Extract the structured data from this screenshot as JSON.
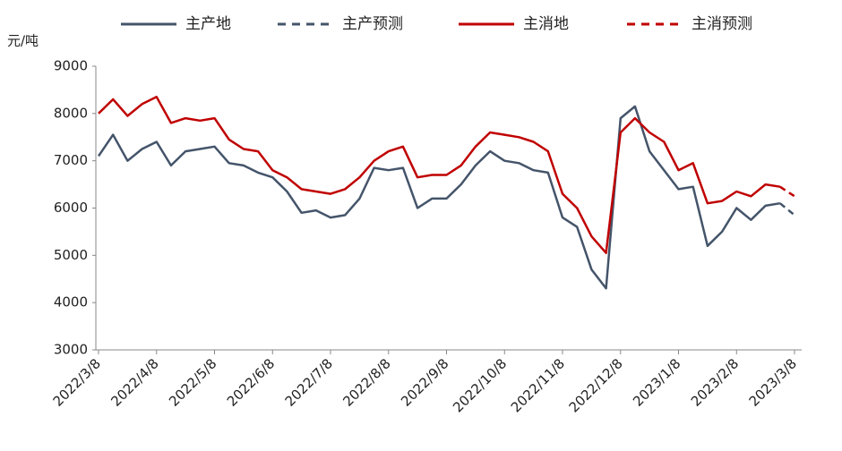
{
  "chart_data": {
    "type": "line",
    "y_label": "元/吨",
    "categories": [
      "2022/3/8",
      null,
      null,
      null,
      "2022/4/8",
      null,
      null,
      null,
      "2022/5/8",
      null,
      null,
      null,
      "2022/6/8",
      null,
      null,
      null,
      "2022/7/8",
      null,
      null,
      null,
      "2022/8/8",
      null,
      null,
      null,
      "2022/9/8",
      null,
      null,
      null,
      "2022/10/8",
      null,
      null,
      null,
      "2022/11/8",
      null,
      null,
      null,
      "2022/12/8",
      null,
      null,
      null,
      "2023/1/8",
      null,
      null,
      null,
      "2023/2/8",
      null,
      null,
      null,
      "2023/3/8"
    ],
    "series": [
      {
        "name": "主产地",
        "color": "#44546a",
        "dashed": false,
        "values": [
          7100,
          7550,
          7000,
          7250,
          7400,
          6900,
          7200,
          7250,
          7300,
          6950,
          6900,
          6750,
          6650,
          6350,
          5900,
          5950,
          5800,
          5850,
          6200,
          6850,
          6800,
          6850,
          6000,
          6200,
          6200,
          6500,
          6900,
          7200,
          7000,
          6950,
          6800,
          6750,
          5800,
          5600,
          4700,
          4300,
          7900,
          8150,
          7200,
          6800,
          6400,
          6450,
          5200,
          5500,
          6000,
          5750,
          6050,
          6100,
          null
        ]
      },
      {
        "name": "主产预测",
        "color": "#44546a",
        "dashed": true,
        "values": [
          null,
          null,
          null,
          null,
          null,
          null,
          null,
          null,
          null,
          null,
          null,
          null,
          null,
          null,
          null,
          null,
          null,
          null,
          null,
          null,
          null,
          null,
          null,
          null,
          null,
          null,
          null,
          null,
          null,
          null,
          null,
          null,
          null,
          null,
          null,
          null,
          null,
          null,
          null,
          null,
          null,
          null,
          null,
          null,
          null,
          null,
          null,
          6100,
          5850
        ]
      },
      {
        "name": "主消地",
        "color": "#c00000",
        "dashed": false,
        "values": [
          8000,
          8300,
          7950,
          8200,
          8350,
          7800,
          7900,
          7850,
          7900,
          7450,
          7250,
          7200,
          6800,
          6650,
          6400,
          6350,
          6300,
          6400,
          6650,
          7000,
          7200,
          7300,
          6650,
          6700,
          6700,
          6900,
          7300,
          7600,
          7550,
          7500,
          7400,
          7200,
          6300,
          6000,
          5400,
          5050,
          7600,
          7900,
          7600,
          7400,
          6800,
          6950,
          6100,
          6150,
          6350,
          6250,
          6500,
          6450,
          null
        ]
      },
      {
        "name": "主消预测",
        "color": "#c00000",
        "dashed": true,
        "values": [
          null,
          null,
          null,
          null,
          null,
          null,
          null,
          null,
          null,
          null,
          null,
          null,
          null,
          null,
          null,
          null,
          null,
          null,
          null,
          null,
          null,
          null,
          null,
          null,
          null,
          null,
          null,
          null,
          null,
          null,
          null,
          null,
          null,
          null,
          null,
          null,
          null,
          null,
          null,
          null,
          null,
          null,
          null,
          null,
          null,
          null,
          null,
          6450,
          6250
        ]
      }
    ],
    "ylim": [
      3000,
      9000
    ],
    "yticks": [
      3000,
      4000,
      5000,
      6000,
      7000,
      8000,
      9000
    ],
    "grid": false
  }
}
